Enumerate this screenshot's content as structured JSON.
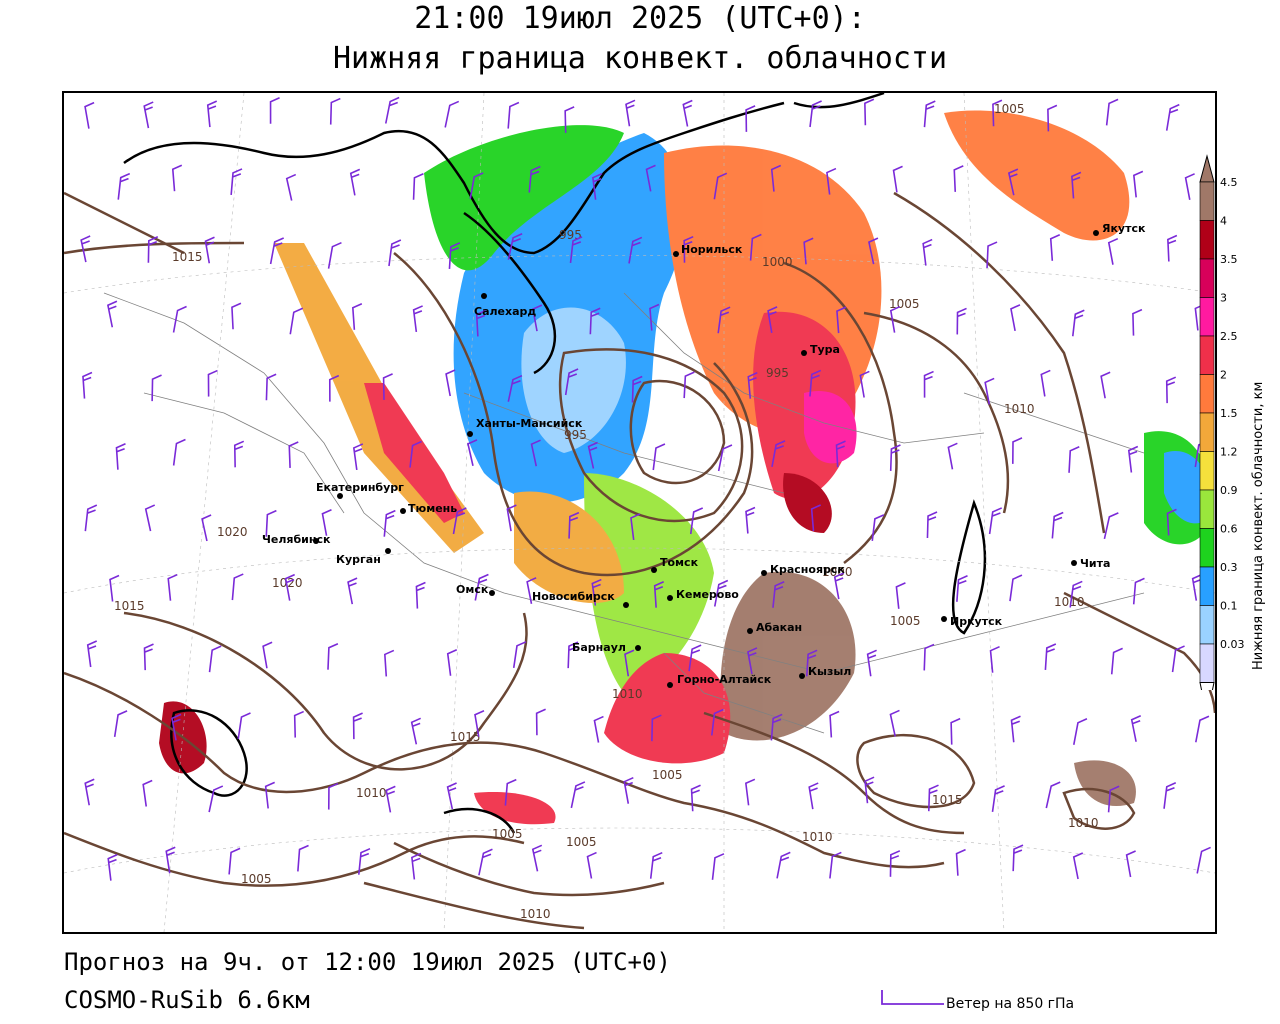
{
  "header": {
    "title_line1": "21:00 19июл 2025 (UTC+0):",
    "title_line2": "Нижняя граница конвект. облачности"
  },
  "footer": {
    "forecast": "Прогноз на 9ч. от 12:00 19июл 2025 (UTC+0)",
    "model": "COSMO-RuSib 6.6км",
    "wind_legend": "Ветер на 850 гПа"
  },
  "legend": {
    "title": "Нижняя граница конвект. облачности, км",
    "levels": [
      {
        "label": "4.5",
        "color": "#a07868"
      },
      {
        "label": "4",
        "color": "#b00018"
      },
      {
        "label": "3.5",
        "color": "#d8005a"
      },
      {
        "label": "3",
        "color": "#ff1aa0"
      },
      {
        "label": "2.5",
        "color": "#f0304a"
      },
      {
        "label": "2",
        "color": "#ff7a3c"
      },
      {
        "label": "1.5",
        "color": "#f2a83a"
      },
      {
        "label": "1.2",
        "color": "#f5e03c"
      },
      {
        "label": "0.9",
        "color": "#9ae63c"
      },
      {
        "label": "0.6",
        "color": "#1ed21e"
      },
      {
        "label": "0.3",
        "color": "#28a0ff"
      },
      {
        "label": "0.1",
        "color": "#9ad2ff"
      },
      {
        "label": "0.03",
        "color": "#d8d8ff"
      }
    ]
  },
  "cities": [
    {
      "name": "Якутск"
    },
    {
      "name": "Норильск"
    },
    {
      "name": "Тура"
    },
    {
      "name": "Салехард"
    },
    {
      "name": "Ханты-Мансийск"
    },
    {
      "name": "Екатеринбург"
    },
    {
      "name": "Тюмень"
    },
    {
      "name": "Челябинск"
    },
    {
      "name": "Курган"
    },
    {
      "name": "Омск"
    },
    {
      "name": "Новосибирск"
    },
    {
      "name": "Томск"
    },
    {
      "name": "Кемерово"
    },
    {
      "name": "Красноярск"
    },
    {
      "name": "Барнаул"
    },
    {
      "name": "Абакан"
    },
    {
      "name": "Горно-Алтайск"
    },
    {
      "name": "Кызыл"
    },
    {
      "name": "Иркутск"
    },
    {
      "name": "Чита"
    }
  ],
  "isobar_labels": [
    "1005",
    "1015",
    "995",
    "1000",
    "1005",
    "995",
    "995",
    "1010",
    "1020",
    "1020",
    "1015",
    "1000",
    "1010",
    "1005",
    "1010",
    "1015",
    "1005",
    "1010",
    "1015",
    "1010",
    "1005",
    "1005",
    "1005",
    "1010",
    "1010"
  ]
}
